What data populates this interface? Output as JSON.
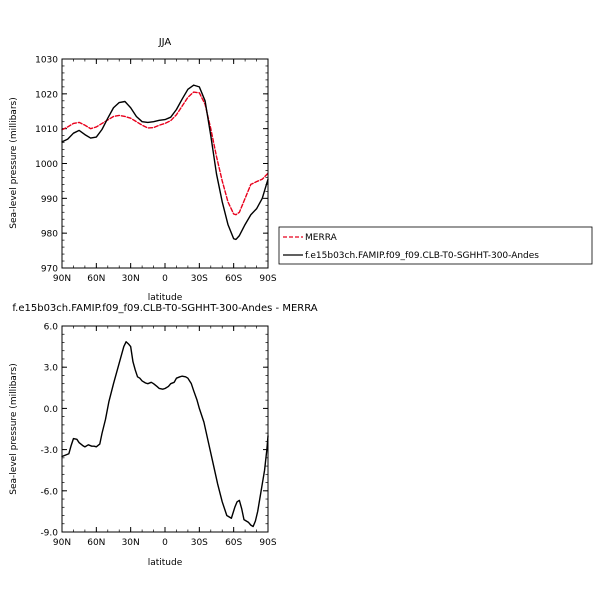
{
  "chart_data": [
    {
      "type": "line",
      "title": "JJA",
      "xlabel": "latitude",
      "ylabel": "Sea-level pressure (millibars)",
      "xlim": [
        90,
        -90
      ],
      "ylim": [
        970,
        1030
      ],
      "x_ticks": [
        90,
        60,
        30,
        0,
        -30,
        -60,
        -90
      ],
      "x_tick_labels": [
        "90N",
        "60N",
        "30N",
        "0",
        "30S",
        "60S",
        "90S"
      ],
      "y_ticks": [
        970,
        980,
        990,
        1000,
        1010,
        1020,
        1030
      ],
      "y_tick_labels": [
        "970",
        "980",
        "990",
        "1000",
        "1010",
        "1020",
        "1030"
      ],
      "legend_position": "right",
      "series": [
        {
          "name": "MERRA",
          "color": "#e8001c",
          "dash": true,
          "x": [
            90,
            85,
            80,
            75,
            70,
            65,
            60,
            55,
            50,
            45,
            40,
            35,
            30,
            25,
            20,
            15,
            10,
            5,
            0,
            -5,
            -10,
            -15,
            -20,
            -25,
            -30,
            -35,
            -40,
            -45,
            -50,
            -55,
            -60,
            -62,
            -65,
            -70,
            -75,
            -80,
            -85,
            -90
          ],
          "values": [
            1009.7,
            1010.5,
            1011.5,
            1011.8,
            1011,
            1010,
            1010.5,
            1011.5,
            1012.5,
            1013.5,
            1013.8,
            1013.5,
            1013,
            1012,
            1011,
            1010.2,
            1010.3,
            1011,
            1011.5,
            1012.3,
            1014,
            1016.5,
            1019,
            1020.5,
            1020.3,
            1017,
            1010,
            1002,
            995,
            989,
            985.5,
            985.3,
            986,
            990,
            994,
            994.8,
            995.5,
            997.2
          ]
        },
        {
          "name": "f.e15b03ch.FAMIP.f09_f09.CLB-T0-SGHHT-300-Andes",
          "color": "#000000",
          "dash": false,
          "x": [
            90,
            85,
            80,
            75,
            70,
            65,
            60,
            55,
            50,
            45,
            40,
            35,
            30,
            25,
            20,
            15,
            10,
            5,
            0,
            -5,
            -10,
            -15,
            -20,
            -25,
            -30,
            -35,
            -40,
            -45,
            -50,
            -55,
            -60,
            -62,
            -65,
            -70,
            -75,
            -80,
            -85,
            -90
          ],
          "values": [
            1006.2,
            1007,
            1008.7,
            1009.5,
            1008.3,
            1007.3,
            1007.6,
            1009.8,
            1013,
            1016,
            1017.5,
            1017.8,
            1016,
            1013.5,
            1012,
            1011.8,
            1012,
            1012.4,
            1012.6,
            1013.3,
            1015.5,
            1018.5,
            1021.3,
            1022.5,
            1022,
            1018,
            1008,
            997,
            989,
            982.5,
            978.4,
            978.2,
            979.3,
            982.5,
            985.3,
            987,
            990,
            995.5
          ]
        }
      ]
    },
    {
      "type": "line",
      "title": "f.e15b03ch.FAMIP.f09_f09.CLB-T0-SGHHT-300-Andes - MERRA",
      "xlabel": "latitude",
      "ylabel": "Sea-level pressure (millibars)",
      "xlim": [
        90,
        -90
      ],
      "ylim": [
        -9,
        6
      ],
      "x_ticks": [
        90,
        60,
        30,
        0,
        -30,
        -60,
        -90
      ],
      "x_tick_labels": [
        "90N",
        "60N",
        "30N",
        "0",
        "30S",
        "60S",
        "90S"
      ],
      "y_ticks": [
        -9,
        -6,
        -3,
        0,
        3,
        6
      ],
      "y_tick_labels": [
        "-9.0",
        "-6.0",
        "-3.0",
        "0.0",
        "3.0",
        "6.0"
      ],
      "series": [
        {
          "color": "#000000",
          "dash": false,
          "x": [
            90,
            87,
            84,
            82,
            80,
            77,
            75,
            72,
            70,
            67,
            64,
            62,
            60,
            57,
            55,
            52,
            49,
            45,
            40,
            36,
            34,
            32,
            30,
            28,
            26,
            24,
            22,
            20,
            17,
            15,
            12,
            10,
            7,
            5,
            2,
            0,
            -3,
            -5,
            -8,
            -10,
            -13,
            -15,
            -18,
            -20,
            -23,
            -25,
            -28,
            -30,
            -34,
            -38,
            -42,
            -46,
            -50,
            -54,
            -58,
            -61,
            -63,
            -65,
            -67,
            -69,
            -71,
            -73,
            -75,
            -77,
            -79,
            -81,
            -83,
            -85,
            -87,
            -89,
            -90
          ],
          "values": [
            -3.5,
            -3.4,
            -3.3,
            -2.7,
            -2.2,
            -2.25,
            -2.5,
            -2.7,
            -2.8,
            -2.65,
            -2.75,
            -2.75,
            -2.8,
            -2.6,
            -1.8,
            -0.8,
            0.5,
            1.8,
            3.3,
            4.5,
            4.85,
            4.7,
            4.5,
            3.4,
            2.8,
            2.3,
            2.2,
            2,
            1.85,
            1.8,
            1.9,
            1.8,
            1.6,
            1.45,
            1.4,
            1.45,
            1.6,
            1.8,
            1.9,
            2.2,
            2.3,
            2.35,
            2.3,
            2.2,
            1.8,
            1.3,
            0.6,
            0,
            -1,
            -2.5,
            -4,
            -5.5,
            -6.8,
            -7.8,
            -8,
            -7.2,
            -6.8,
            -6.7,
            -7.3,
            -8.1,
            -8.2,
            -8.3,
            -8.5,
            -8.6,
            -8.2,
            -7.5,
            -6.5,
            -5.5,
            -4.5,
            -3,
            -2
          ]
        }
      ]
    }
  ]
}
